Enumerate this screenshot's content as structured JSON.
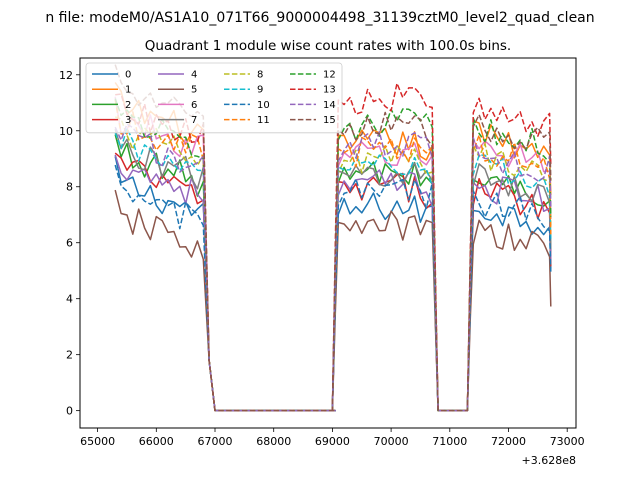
{
  "suptitle": "n file: modeM0/AS1A10_071T66_9000004498_31139cztM0_level2_quad_clean",
  "chart_data": {
    "type": "line",
    "title": "Quadrant 1 module wise count rates with 100.0s bins.",
    "xlabel": "",
    "ylabel": "",
    "x_offset_label": "+3.628e8",
    "xlim": [
      64700,
      73150
    ],
    "ylim": [
      -0.62,
      12.6
    ],
    "x_ticks": [
      65000,
      66000,
      67000,
      68000,
      69000,
      70000,
      71000,
      72000,
      73000
    ],
    "x_tick_labels": [
      "65000",
      "66000",
      "67000",
      "68000",
      "69000",
      "70000",
      "71000",
      "72000",
      "73000"
    ],
    "y_ticks": [
      0,
      2,
      4,
      6,
      8,
      10,
      12
    ],
    "y_tick_labels": [
      "0",
      "2",
      "4",
      "6",
      "8",
      "10",
      "12"
    ],
    "grid": false,
    "legend_placement": "top-left",
    "legend_columns": 4,
    "series": [
      {
        "name": "0",
        "color": "#1f77b4",
        "dash": "solid",
        "bases": [
          7.3,
          7.0,
          6.9
        ]
      },
      {
        "name": "1",
        "color": "#ff7f0e",
        "dash": "solid",
        "bases": [
          10.1,
          9.3,
          9.5
        ]
      },
      {
        "name": "2",
        "color": "#2ca02c",
        "dash": "solid",
        "bases": [
          8.4,
          8.2,
          7.9
        ]
      },
      {
        "name": "3",
        "color": "#d62728",
        "dash": "solid",
        "bases": [
          7.9,
          7.7,
          7.5
        ]
      },
      {
        "name": "4",
        "color": "#9467bd",
        "dash": "solid",
        "bases": [
          8.0,
          7.8,
          7.7
        ]
      },
      {
        "name": "5",
        "color": "#8c564b",
        "dash": "solid",
        "bases": [
          6.1,
          6.3,
          6.0
        ]
      },
      {
        "name": "6",
        "color": "#e377c2",
        "dash": "solid",
        "bases": [
          9.6,
          8.9,
          9.1
        ]
      },
      {
        "name": "7",
        "color": "#7f7f7f",
        "dash": "solid",
        "bases": [
          8.6,
          8.2,
          8.0
        ]
      },
      {
        "name": "8",
        "color": "#bcbd22",
        "dash": "dashed",
        "bases": [
          9.2,
          8.7,
          8.8
        ]
      },
      {
        "name": "9",
        "color": "#17becf",
        "dash": "dashed",
        "bases": [
          8.8,
          8.4,
          8.3
        ]
      },
      {
        "name": "10",
        "color": "#1f77b4",
        "dash": "dashed",
        "bases": [
          7.0,
          7.6,
          7.1
        ]
      },
      {
        "name": "11",
        "color": "#ff7f0e",
        "dash": "dashed",
        "bases": [
          9.5,
          9.1,
          9.0
        ]
      },
      {
        "name": "12",
        "color": "#2ca02c",
        "dash": "dashed",
        "bases": [
          9.7,
          10.0,
          9.6
        ]
      },
      {
        "name": "13",
        "color": "#d62728",
        "dash": "dashed",
        "bases": [
          10.0,
          10.9,
          10.3
        ]
      },
      {
        "name": "14",
        "color": "#9467bd",
        "dash": "dashed",
        "bases": [
          9.0,
          9.3,
          8.8
        ]
      },
      {
        "name": "15",
        "color": "#8c564b",
        "dash": "dashed",
        "bases": [
          10.6,
          9.9,
          9.7
        ]
      }
    ],
    "segments": [
      {
        "start": 65300,
        "end": 66800
      },
      {
        "start": 69100,
        "end": 70700
      },
      {
        "start": 71400,
        "end": 72700
      }
    ],
    "gaps": [
      [
        67000,
        69050
      ],
      [
        70800,
        71350
      ]
    ],
    "bin_size": 100
  }
}
